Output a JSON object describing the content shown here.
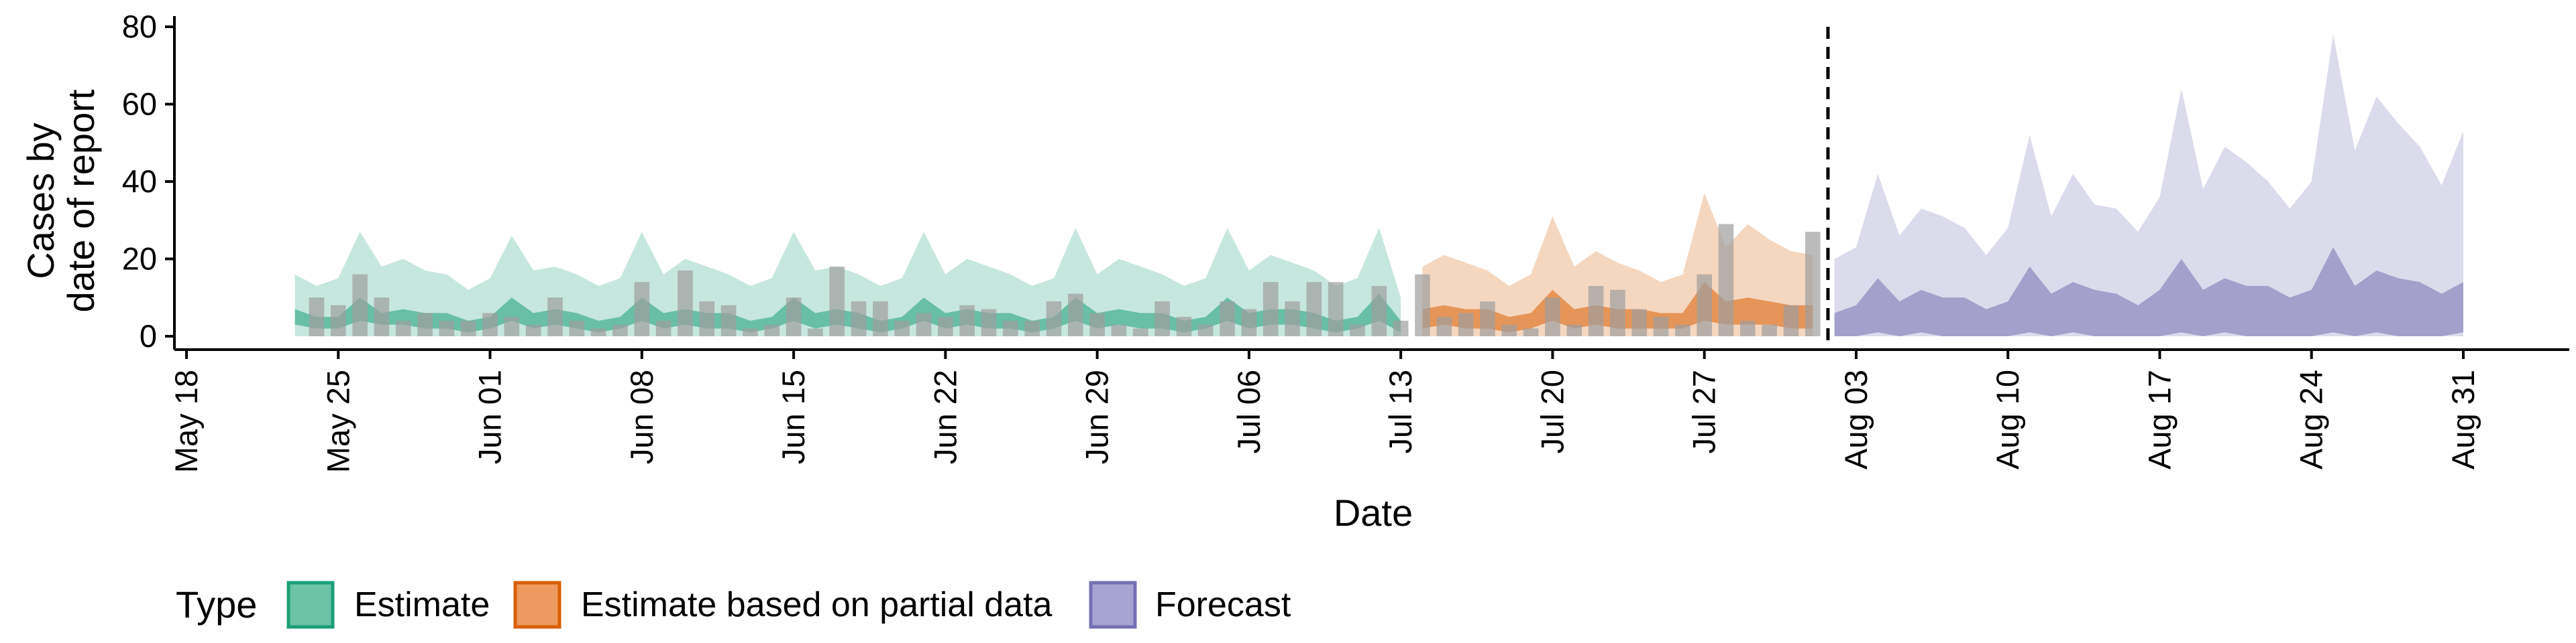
{
  "chart_data": {
    "type": "area",
    "xlabel": "Date",
    "ylabel_lines": [
      "Cases by",
      "date of report"
    ],
    "ylim": [
      0,
      82
    ],
    "yticks": [
      0,
      20,
      40,
      60,
      80
    ],
    "x_start_day": 0,
    "x_end_day": 105,
    "x_tick_labels": [
      "May 18",
      "May 25",
      "Jun 01",
      "Jun 08",
      "Jun 15",
      "Jun 22",
      "Jun 29",
      "Jul 06",
      "Jul 13",
      "Jul 20",
      "Jul 27",
      "Aug 03",
      "Aug 10",
      "Aug 17",
      "Aug 24",
      "Aug 31"
    ],
    "x_tick_days": [
      0,
      7,
      14,
      21,
      28,
      35,
      42,
      49,
      56,
      63,
      70,
      77,
      84,
      91,
      98,
      105
    ],
    "vline_day": 75.7,
    "legend": {
      "title": "Type",
      "entries": [
        {
          "label": "Estimate",
          "fill": "#6cc3a5",
          "stroke": "#1b9e77"
        },
        {
          "label": "Estimate based on partial data",
          "fill": "#ee9a5e",
          "stroke": "#d95f02"
        },
        {
          "label": "Forecast",
          "fill": "#a9a3d1",
          "stroke": "#7570b3"
        }
      ]
    },
    "series": [
      {
        "name": "Estimate",
        "color": "#1b9e77",
        "days": [
          5,
          6,
          7,
          8,
          9,
          10,
          11,
          12,
          13,
          14,
          15,
          16,
          17,
          18,
          19,
          20,
          21,
          22,
          23,
          24,
          25,
          26,
          27,
          28,
          29,
          30,
          31,
          32,
          33,
          34,
          35,
          36,
          37,
          38,
          39,
          40,
          41,
          42,
          43,
          44,
          45,
          46,
          47,
          48,
          49,
          50,
          51,
          52,
          53,
          54,
          55,
          56
        ],
        "outer_upper": [
          16,
          13,
          15,
          27,
          18,
          20,
          17,
          16,
          12,
          15,
          26,
          17,
          18,
          16,
          13,
          15,
          27,
          16,
          20,
          18,
          16,
          13,
          15,
          27,
          17,
          18,
          16,
          13,
          15,
          27,
          16,
          20,
          18,
          16,
          13,
          15,
          28,
          16,
          20,
          18,
          16,
          13,
          15,
          28,
          17,
          21,
          19,
          17,
          13,
          15,
          28,
          10
        ],
        "outer_lower": [
          0,
          0,
          0,
          0,
          0,
          0,
          0,
          0,
          0,
          0,
          0,
          0,
          0,
          0,
          0,
          0,
          0,
          0,
          0,
          0,
          0,
          0,
          0,
          0,
          0,
          0,
          0,
          0,
          0,
          0,
          0,
          0,
          0,
          0,
          0,
          0,
          0,
          0,
          0,
          0,
          0,
          0,
          0,
          0,
          0,
          0,
          0,
          0,
          0,
          0,
          0,
          0
        ],
        "inner_upper": [
          7,
          5,
          5,
          10,
          6,
          7,
          6,
          6,
          4,
          5,
          10,
          6,
          7,
          6,
          4,
          5,
          10,
          6,
          7,
          6,
          6,
          4,
          5,
          10,
          6,
          7,
          6,
          4,
          5,
          10,
          6,
          7,
          6,
          6,
          4,
          5,
          10,
          6,
          7,
          6,
          6,
          4,
          5,
          10,
          6,
          7,
          7,
          6,
          4,
          5,
          11,
          4
        ],
        "inner_lower": [
          3,
          2,
          2,
          4,
          3,
          3,
          2,
          2,
          1,
          2,
          4,
          2,
          3,
          2,
          1,
          2,
          4,
          2,
          3,
          2,
          2,
          1,
          2,
          4,
          2,
          3,
          2,
          1,
          2,
          4,
          2,
          3,
          2,
          2,
          1,
          2,
          4,
          2,
          3,
          2,
          2,
          1,
          2,
          4,
          2,
          3,
          3,
          2,
          1,
          2,
          4,
          1
        ]
      },
      {
        "name": "Estimate based on partial data",
        "color": "#d95f02",
        "days": [
          57,
          58,
          59,
          60,
          61,
          62,
          63,
          64,
          65,
          66,
          67,
          68,
          69,
          70,
          71,
          72,
          73,
          74,
          75
        ],
        "outer_upper": [
          18,
          21,
          19,
          17,
          13,
          16,
          31,
          18,
          22,
          19,
          17,
          14,
          16,
          37,
          23,
          29,
          25,
          22,
          21
        ],
        "outer_lower": [
          0,
          0,
          0,
          0,
          0,
          0,
          0,
          0,
          0,
          0,
          0,
          0,
          0,
          0,
          0,
          0,
          0,
          0,
          0
        ],
        "inner_upper": [
          7,
          8,
          7,
          7,
          5,
          6,
          12,
          7,
          8,
          7,
          7,
          6,
          6,
          14,
          9,
          10,
          9,
          8,
          8
        ],
        "inner_lower": [
          2,
          3,
          2,
          2,
          1,
          2,
          4,
          2,
          3,
          2,
          2,
          2,
          2,
          4,
          3,
          3,
          3,
          2,
          2
        ]
      },
      {
        "name": "Forecast",
        "color": "#7570b3",
        "days": [
          76,
          77,
          78,
          79,
          80,
          81,
          82,
          83,
          84,
          85,
          86,
          87,
          88,
          89,
          90,
          91,
          92,
          93,
          94,
          95,
          96,
          97,
          98,
          99,
          100,
          101,
          102,
          103,
          104,
          105
        ],
        "outer_upper": [
          20,
          23,
          42,
          26,
          33,
          31,
          28,
          21,
          28,
          52,
          31,
          42,
          34,
          33,
          27,
          36,
          64,
          38,
          49,
          45,
          40,
          33,
          40,
          78,
          48,
          62,
          55,
          49,
          39,
          53
        ],
        "outer_lower": [
          0,
          0,
          0,
          0,
          0,
          0,
          0,
          0,
          0,
          0,
          0,
          0,
          0,
          0,
          0,
          0,
          0,
          0,
          0,
          0,
          0,
          0,
          0,
          0,
          0,
          0,
          0,
          0,
          0,
          0
        ],
        "inner_upper": [
          6,
          8,
          15,
          9,
          12,
          10,
          10,
          7,
          9,
          18,
          11,
          14,
          12,
          11,
          8,
          12,
          20,
          12,
          15,
          13,
          13,
          10,
          12,
          23,
          13,
          17,
          15,
          14,
          11,
          14
        ],
        "inner_lower": [
          0,
          0,
          1,
          0,
          1,
          0,
          0,
          0,
          0,
          1,
          0,
          1,
          0,
          0,
          0,
          0,
          1,
          0,
          1,
          0,
          0,
          0,
          0,
          1,
          0,
          1,
          0,
          0,
          0,
          1
        ]
      }
    ],
    "bars": {
      "color": "#9e9e9e",
      "days": [
        6,
        7,
        8,
        9,
        10,
        11,
        12,
        13,
        14,
        15,
        16,
        17,
        18,
        19,
        20,
        21,
        22,
        23,
        24,
        25,
        26,
        27,
        28,
        29,
        30,
        31,
        32,
        33,
        34,
        35,
        36,
        37,
        38,
        39,
        40,
        41,
        42,
        43,
        44,
        45,
        46,
        47,
        48,
        49,
        50,
        51,
        52,
        53,
        54,
        55,
        56,
        57,
        58,
        59,
        60,
        61,
        62,
        63,
        64,
        65,
        66,
        67,
        68,
        69,
        70,
        71,
        72,
        73,
        74,
        75
      ],
      "values": [
        10,
        8,
        16,
        10,
        4,
        6,
        4,
        4,
        6,
        5,
        3,
        10,
        4,
        2,
        3,
        14,
        4,
        17,
        9,
        8,
        2,
        3,
        10,
        2,
        18,
        9,
        9,
        4,
        6,
        5,
        8,
        7,
        4,
        4,
        9,
        11,
        6,
        3,
        2,
        9,
        5,
        3,
        9,
        7,
        14,
        9,
        14,
        14,
        3,
        13,
        4,
        16,
        5,
        6,
        9,
        3,
        2,
        10,
        3,
        13,
        12,
        7,
        5,
        3,
        16,
        29,
        4,
        3,
        8,
        27
      ]
    }
  }
}
